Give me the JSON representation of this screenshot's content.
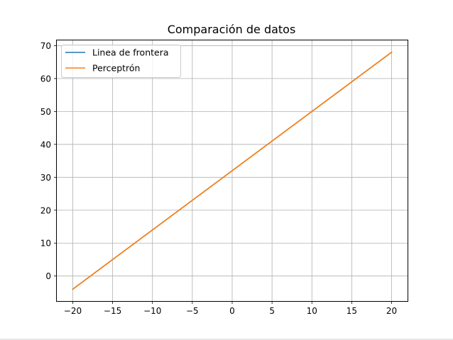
{
  "chart_data": {
    "type": "line",
    "title": "Comparación de datos",
    "xlabel": "",
    "ylabel": "",
    "xlim": [
      -22,
      22
    ],
    "ylim": [
      -7.6,
      71.6
    ],
    "x_ticks": [
      -20,
      -15,
      -10,
      -5,
      0,
      5,
      10,
      15,
      20
    ],
    "x_tick_labels": [
      "−20",
      "−15",
      "−10",
      "−5",
      "0",
      "5",
      "10",
      "15",
      "20"
    ],
    "y_ticks": [
      0,
      10,
      20,
      30,
      40,
      50,
      60,
      70
    ],
    "y_tick_labels": [
      "0",
      "10",
      "20",
      "30",
      "40",
      "50",
      "60",
      "70"
    ],
    "grid": true,
    "legend": "top-left",
    "series": [
      {
        "name": "Linea de frontera",
        "color": "#1f77b4",
        "x": [
          -20,
          20
        ],
        "y": [
          -4,
          68
        ]
      },
      {
        "name": "Perceptrón",
        "color": "#ff7f0e",
        "x": [
          -20,
          20
        ],
        "y": [
          -4,
          68
        ]
      }
    ]
  }
}
